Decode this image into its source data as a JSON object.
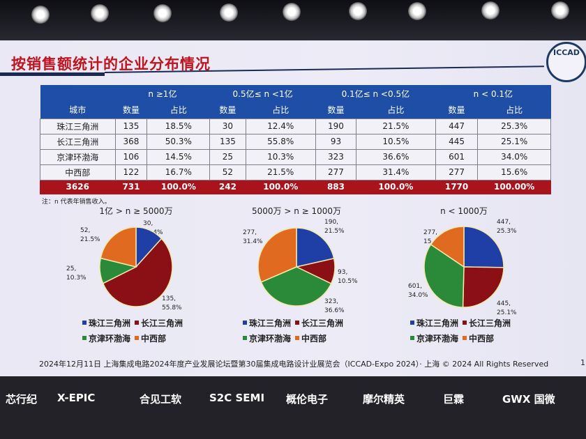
{
  "slide": {
    "title": "按销售额统计的企业分布情况",
    "logo_text": "ICCAD",
    "note": "注：n 代表年销售收入。",
    "footer": "2024年12月11日 上海集成电路2024年度产业发展论坛暨第30届集成电路设计业展览会（ICCAD-Expo 2024）· 上海 © 2024 All Rights Reserved",
    "page": "1"
  },
  "table": {
    "city_header": "城市",
    "groups": [
      "n ≥1亿",
      "0.5亿≤ n <1亿",
      "0.1亿≤ n <0.5亿",
      "n < 0.1亿"
    ],
    "sub": [
      "数量",
      "占比"
    ],
    "rows": [
      [
        "珠江三角洲",
        "135",
        "18.5%",
        "30",
        "12.4%",
        "190",
        "21.5%",
        "447",
        "25.3%"
      ],
      [
        "长江三角洲",
        "368",
        "50.3%",
        "135",
        "55.8%",
        "93",
        "10.5%",
        "445",
        "25.1%"
      ],
      [
        "京津环渤海",
        "106",
        "14.5%",
        "25",
        "10.3%",
        "323",
        "36.6%",
        "601",
        "34.0%"
      ],
      [
        "中西部",
        "122",
        "16.7%",
        "52",
        "21.5%",
        "277",
        "31.4%",
        "277",
        "15.6%"
      ]
    ],
    "total": [
      "3626",
      "731",
      "100.0%",
      "242",
      "100.0%",
      "883",
      "100.0%",
      "1770",
      "100.00%"
    ]
  },
  "chart_data": [
    {
      "type": "pie",
      "title": "1亿 > n ≥ 5000万",
      "categories": [
        "珠江三角洲",
        "长江三角洲",
        "京津环渤海",
        "中西部"
      ],
      "values": [
        30,
        135,
        25,
        52
      ],
      "labels": [
        "30, 12.4%",
        "135, 55.8%",
        "25, 10.3%",
        "52, 21.5%"
      ]
    },
    {
      "type": "pie",
      "title": "5000万 > n ≥ 1000万",
      "categories": [
        "珠江三角洲",
        "长江三角洲",
        "京津环渤海",
        "中西部"
      ],
      "values": [
        190,
        93,
        323,
        277
      ],
      "labels": [
        "190, 21.5%",
        "93, 10.5%",
        "323, 36.6%",
        "277, 31.4%"
      ]
    },
    {
      "type": "pie",
      "title": "n < 1000万",
      "categories": [
        "珠江三角洲",
        "长江三角洲",
        "京津环渤海",
        "中西部"
      ],
      "values": [
        447,
        445,
        601,
        277
      ],
      "labels": [
        "447, 25.3%",
        "445, 25.1%",
        "601, 34.0%",
        "277, 15.6%"
      ]
    }
  ],
  "colors": {
    "珠江三角洲": "#1f3fa6",
    "长江三角洲": "#8b1015",
    "京津环渤海": "#2a8a3a",
    "中西部": "#e06a20",
    "header": "#1e4ea6",
    "total": "#a8131c",
    "title": "#c0141e"
  },
  "sponsors": [
    "芯行纪",
    "X-EPIC",
    "合见工软",
    "S2C SEMI",
    "概伦电子",
    "摩尔精英",
    "巨霖",
    "GWX 国微"
  ]
}
